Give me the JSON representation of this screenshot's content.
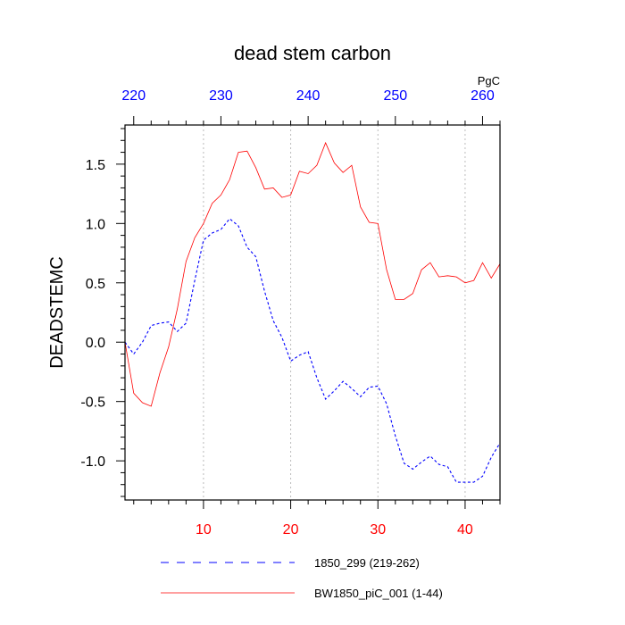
{
  "chart_data": {
    "type": "line",
    "title": "dead stem carbon",
    "ylabel": "DEADSTEMC",
    "units": "PgC",
    "xlim": [
      1,
      44
    ],
    "ylim": [
      -1.33,
      1.83
    ],
    "bottom_ticks": [
      10,
      20,
      30,
      40
    ],
    "bottom_tick_labels": [
      "10",
      "20",
      "30",
      "40"
    ],
    "top_ticks": [
      220,
      230,
      240,
      250,
      260
    ],
    "top_tick_labels": [
      "220",
      "230",
      "240",
      "250",
      "260"
    ],
    "top_axis_offset": 218,
    "y_ticks": [
      -1.0,
      -0.5,
      0.0,
      0.5,
      1.0,
      1.5
    ],
    "y_tick_labels": [
      "-1.0",
      "-0.5",
      "0.0",
      "0.5",
      "1.0",
      "1.5"
    ],
    "gridlines_x": [
      10,
      20,
      30,
      40
    ],
    "colors": {
      "series_1850": "#0000ff",
      "series_bw": "#ff0000",
      "top_ticks": "#0000ff",
      "bottom_ticks": "#ff0000",
      "grid": "#bbbbbb",
      "axis": "#000000"
    },
    "series": [
      {
        "name": "1850_299 (219-262)",
        "style": "dashed",
        "color": "#0000ff",
        "x": [
          1,
          2,
          3,
          4,
          5,
          6,
          7,
          8,
          9,
          10,
          11,
          12,
          13,
          14,
          15,
          16,
          17,
          18,
          19,
          20,
          21,
          22,
          23,
          24,
          25,
          26,
          27,
          28,
          29,
          30,
          31,
          32,
          33,
          34,
          35,
          36,
          37,
          38,
          39,
          40,
          41,
          42,
          43,
          44
        ],
        "values": [
          0.0,
          -0.1,
          0.0,
          0.14,
          0.16,
          0.17,
          0.09,
          0.16,
          0.52,
          0.86,
          0.92,
          0.95,
          1.04,
          0.98,
          0.8,
          0.72,
          0.43,
          0.18,
          0.04,
          -0.16,
          -0.11,
          -0.08,
          -0.3,
          -0.48,
          -0.41,
          -0.33,
          -0.39,
          -0.46,
          -0.38,
          -0.37,
          -0.52,
          -0.79,
          -1.02,
          -1.07,
          -1.01,
          -0.96,
          -1.03,
          -1.05,
          -1.18,
          -1.18,
          -1.18,
          -1.13,
          -0.97,
          -0.85
        ]
      },
      {
        "name": "BW1850_piC_001 (1-44)",
        "style": "solid",
        "color": "#ff0000",
        "x": [
          1,
          2,
          3,
          4,
          5,
          6,
          7,
          8,
          9,
          10,
          11,
          12,
          13,
          14,
          15,
          16,
          17,
          18,
          19,
          20,
          21,
          22,
          23,
          24,
          25,
          26,
          27,
          28,
          29,
          30,
          31,
          32,
          33,
          34,
          35,
          36,
          37,
          38,
          39,
          40,
          41,
          42,
          43,
          44
        ],
        "values": [
          0.0,
          -0.43,
          -0.51,
          -0.54,
          -0.26,
          -0.04,
          0.28,
          0.68,
          0.88,
          1.0,
          1.17,
          1.24,
          1.37,
          1.6,
          1.61,
          1.47,
          1.29,
          1.3,
          1.22,
          1.24,
          1.44,
          1.42,
          1.49,
          1.68,
          1.51,
          1.43,
          1.49,
          1.14,
          1.01,
          1.0,
          0.61,
          0.36,
          0.36,
          0.41,
          0.61,
          0.67,
          0.55,
          0.56,
          0.55,
          0.5,
          0.52,
          0.67,
          0.54,
          0.66
        ]
      }
    ]
  }
}
